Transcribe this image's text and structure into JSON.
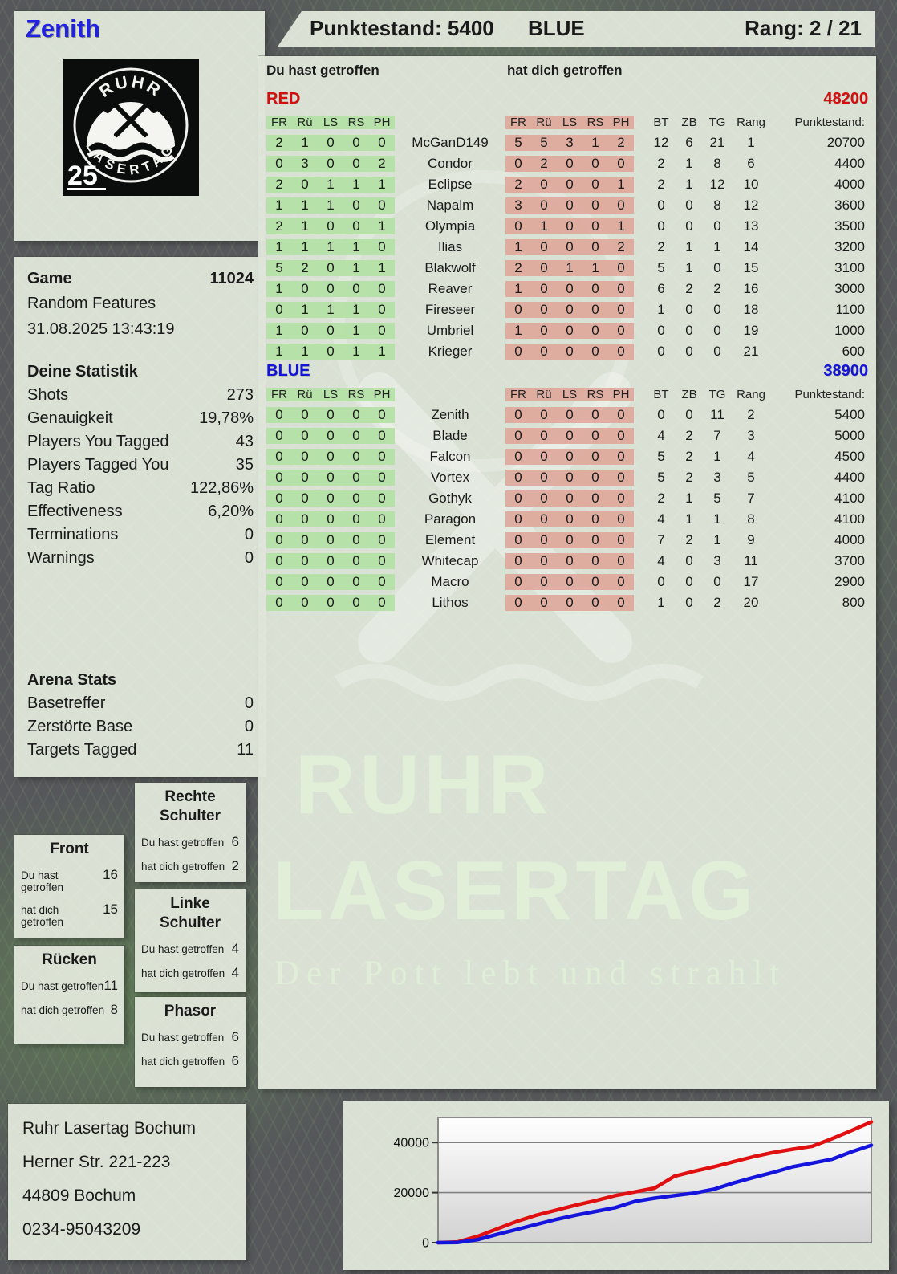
{
  "header": {
    "player_name": "Zenith",
    "punktestand": "Punktestand: 5400",
    "team": "BLUE",
    "rang": "Rang: 2 / 21"
  },
  "logo": {
    "arc_top": "RUHR",
    "arc_bottom": "LASERTAG",
    "badge": "25"
  },
  "game": {
    "label": "Game",
    "number": "11024",
    "mode": "Random Features",
    "datetime": "31.08.2025 13:43:19"
  },
  "your_stats": {
    "title": "Deine Statistik",
    "rows": [
      {
        "label": "Shots",
        "value": "273"
      },
      {
        "label": "Genauigkeit",
        "value": "19,78%"
      },
      {
        "label": "Players You Tagged",
        "value": "43"
      },
      {
        "label": "Players Tagged You",
        "value": "35"
      },
      {
        "label": "Tag Ratio",
        "value": "122,86%"
      },
      {
        "label": "Effectiveness",
        "value": "6,20%"
      },
      {
        "label": "Terminations",
        "value": "0"
      },
      {
        "label": "Warnings",
        "value": "0"
      }
    ]
  },
  "arena_stats": {
    "title": "Arena Stats",
    "rows": [
      {
        "label": "Basetreffer",
        "value": "0"
      },
      {
        "label": "Zerstörte Base",
        "value": "0"
      },
      {
        "label": "Targets Tagged",
        "value": "11"
      }
    ]
  },
  "hit_labels": {
    "you": "Du hast getroffen",
    "them": "hat dich getroffen"
  },
  "body_parts": [
    {
      "title": "Rechte Schulter",
      "you": "6",
      "them": "2"
    },
    {
      "title": "Front",
      "you": "16",
      "them": "15"
    },
    {
      "title": "Linke Schulter",
      "you": "4",
      "them": "4"
    },
    {
      "title": "Rücken",
      "you": "11",
      "them": "8"
    },
    {
      "title": "Phasor",
      "you": "6",
      "them": "6"
    }
  ],
  "table": {
    "hit_col_headers": [
      "FR",
      "Rü",
      "LS",
      "RS",
      "PH"
    ],
    "stat_col_headers": [
      "BT",
      "ZB",
      "TG",
      "Rang",
      "Punktestand:"
    ],
    "sections": [
      {
        "name": "RED",
        "color": "#d40f0f",
        "total": "48200",
        "rows": [
          {
            "you": [
              2,
              1,
              0,
              0,
              0
            ],
            "name": "McGanD149",
            "them": [
              5,
              5,
              3,
              1,
              2
            ],
            "stats": [
              12,
              6,
              21,
              1
            ],
            "punkte": "20700"
          },
          {
            "you": [
              0,
              3,
              0,
              0,
              2
            ],
            "name": "Condor",
            "them": [
              0,
              2,
              0,
              0,
              0
            ],
            "stats": [
              2,
              1,
              8,
              6
            ],
            "punkte": "4400"
          },
          {
            "you": [
              2,
              0,
              1,
              1,
              1
            ],
            "name": "Eclipse",
            "them": [
              2,
              0,
              0,
              0,
              1
            ],
            "stats": [
              2,
              1,
              12,
              10
            ],
            "punkte": "4000"
          },
          {
            "you": [
              1,
              1,
              1,
              0,
              0
            ],
            "name": "Napalm",
            "them": [
              3,
              0,
              0,
              0,
              0
            ],
            "stats": [
              0,
              0,
              8,
              12
            ],
            "punkte": "3600"
          },
          {
            "you": [
              2,
              1,
              0,
              0,
              1
            ],
            "name": "Olympia",
            "them": [
              0,
              1,
              0,
              0,
              1
            ],
            "stats": [
              0,
              0,
              0,
              13
            ],
            "punkte": "3500"
          },
          {
            "you": [
              1,
              1,
              1,
              1,
              0
            ],
            "name": "Ilias",
            "them": [
              1,
              0,
              0,
              0,
              2
            ],
            "stats": [
              2,
              1,
              1,
              14
            ],
            "punkte": "3200"
          },
          {
            "you": [
              5,
              2,
              0,
              1,
              1
            ],
            "name": "Blakwolf",
            "them": [
              2,
              0,
              1,
              1,
              0
            ],
            "stats": [
              5,
              1,
              0,
              15
            ],
            "punkte": "3100"
          },
          {
            "you": [
              1,
              0,
              0,
              0,
              0
            ],
            "name": "Reaver",
            "them": [
              1,
              0,
              0,
              0,
              0
            ],
            "stats": [
              6,
              2,
              2,
              16
            ],
            "punkte": "3000"
          },
          {
            "you": [
              0,
              1,
              1,
              1,
              0
            ],
            "name": "Fireseer",
            "them": [
              0,
              0,
              0,
              0,
              0
            ],
            "stats": [
              1,
              0,
              0,
              18
            ],
            "punkte": "1100"
          },
          {
            "you": [
              1,
              0,
              0,
              1,
              0
            ],
            "name": "Umbriel",
            "them": [
              1,
              0,
              0,
              0,
              0
            ],
            "stats": [
              0,
              0,
              0,
              19
            ],
            "punkte": "1000"
          },
          {
            "you": [
              1,
              1,
              0,
              1,
              1
            ],
            "name": "Krieger",
            "them": [
              0,
              0,
              0,
              0,
              0
            ],
            "stats": [
              0,
              0,
              0,
              21
            ],
            "punkte": "600"
          }
        ]
      },
      {
        "name": "BLUE",
        "color": "#1414d6",
        "total": "38900",
        "rows": [
          {
            "you": [
              0,
              0,
              0,
              0,
              0
            ],
            "name": "Zenith",
            "them": [
              0,
              0,
              0,
              0,
              0
            ],
            "stats": [
              0,
              0,
              11,
              2
            ],
            "punkte": "5400"
          },
          {
            "you": [
              0,
              0,
              0,
              0,
              0
            ],
            "name": "Blade",
            "them": [
              0,
              0,
              0,
              0,
              0
            ],
            "stats": [
              4,
              2,
              7,
              3
            ],
            "punkte": "5000"
          },
          {
            "you": [
              0,
              0,
              0,
              0,
              0
            ],
            "name": "Falcon",
            "them": [
              0,
              0,
              0,
              0,
              0
            ],
            "stats": [
              5,
              2,
              1,
              4
            ],
            "punkte": "4500"
          },
          {
            "you": [
              0,
              0,
              0,
              0,
              0
            ],
            "name": "Vortex",
            "them": [
              0,
              0,
              0,
              0,
              0
            ],
            "stats": [
              5,
              2,
              3,
              5
            ],
            "punkte": "4400"
          },
          {
            "you": [
              0,
              0,
              0,
              0,
              0
            ],
            "name": "Gothyk",
            "them": [
              0,
              0,
              0,
              0,
              0
            ],
            "stats": [
              2,
              1,
              5,
              7
            ],
            "punkte": "4100"
          },
          {
            "you": [
              0,
              0,
              0,
              0,
              0
            ],
            "name": "Paragon",
            "them": [
              0,
              0,
              0,
              0,
              0
            ],
            "stats": [
              4,
              1,
              1,
              8
            ],
            "punkte": "4100"
          },
          {
            "you": [
              0,
              0,
              0,
              0,
              0
            ],
            "name": "Element",
            "them": [
              0,
              0,
              0,
              0,
              0
            ],
            "stats": [
              7,
              2,
              1,
              9
            ],
            "punkte": "4000"
          },
          {
            "you": [
              0,
              0,
              0,
              0,
              0
            ],
            "name": "Whitecap",
            "them": [
              0,
              0,
              0,
              0,
              0
            ],
            "stats": [
              4,
              0,
              3,
              11
            ],
            "punkte": "3700"
          },
          {
            "you": [
              0,
              0,
              0,
              0,
              0
            ],
            "name": "Macro",
            "them": [
              0,
              0,
              0,
              0,
              0
            ],
            "stats": [
              0,
              0,
              0,
              17
            ],
            "punkte": "2900"
          },
          {
            "you": [
              0,
              0,
              0,
              0,
              0
            ],
            "name": "Lithos",
            "them": [
              0,
              0,
              0,
              0,
              0
            ],
            "stats": [
              1,
              0,
              2,
              20
            ],
            "punkte": "800"
          }
        ]
      }
    ]
  },
  "address": [
    "Ruhr Lasertag Bochum",
    "Herner Str. 221-223",
    "44809 Bochum",
    "0234-95043209"
  ],
  "watermark": {
    "line1": "RUHR",
    "line2": "LASERTAG",
    "tagline": "Der Pott lebt und strahlt"
  },
  "chart_data": {
    "type": "line",
    "title": "",
    "xlabel": "",
    "ylabel": "",
    "ylim": [
      0,
      50000
    ],
    "yticks": [
      0,
      20000,
      40000
    ],
    "grid": true,
    "legend": "none",
    "x_unit": "game time (equal samples start to end)",
    "series": [
      {
        "name": "RED cumulative score",
        "color": "#e01010",
        "final": 48200,
        "values": [
          0,
          300,
          2500,
          5500,
          8500,
          11000,
          13000,
          15000,
          16800,
          18800,
          20300,
          21800,
          26500,
          28500,
          30300,
          32300,
          34300,
          36000,
          37300,
          38500,
          41500,
          44800,
          48200
        ]
      },
      {
        "name": "BLUE cumulative score",
        "color": "#1414dd",
        "final": 38900,
        "values": [
          0,
          100,
          1200,
          3300,
          5300,
          7300,
          9300,
          11000,
          12500,
          14000,
          16500,
          17800,
          18800,
          19800,
          21300,
          23800,
          26000,
          28000,
          30300,
          31800,
          33300,
          36300,
          38900
        ]
      }
    ]
  }
}
